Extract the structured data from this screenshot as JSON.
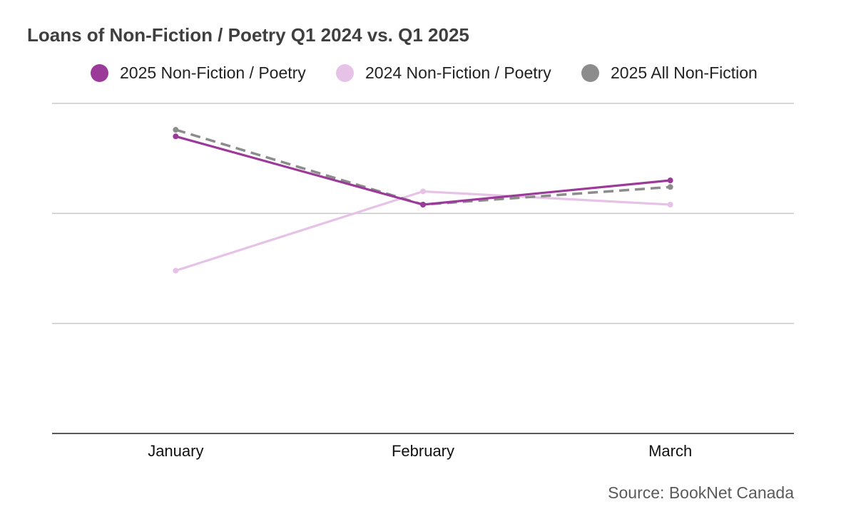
{
  "title": "Loans of Non-Fiction / Poetry Q1 2024 vs. Q1 2025",
  "source": "Source: BookNet Canada",
  "chart_data": {
    "type": "line",
    "title": "Loans of Non-Fiction / Poetry Q1 2024 vs. Q1 2025",
    "xlabel": "",
    "ylabel": "",
    "categories": [
      "January",
      "February",
      "March"
    ],
    "ylim": [
      0,
      150
    ],
    "grid": true,
    "y_tick_labels_shown": false,
    "legend_position": "top",
    "series": [
      {
        "name": "2025 Non-Fiction / Poetry",
        "color": "#9b3a98",
        "dash": "solid",
        "values": [
          135,
          104,
          115
        ]
      },
      {
        "name": "2024 Non-Fiction / Poetry",
        "color": "#e6c3e6",
        "dash": "solid",
        "values": [
          74,
          110,
          104
        ]
      },
      {
        "name": "2025 All Non-Fiction",
        "color": "#8c8c8c",
        "dash": "dashed",
        "values": [
          138,
          104,
          112
        ]
      }
    ]
  }
}
